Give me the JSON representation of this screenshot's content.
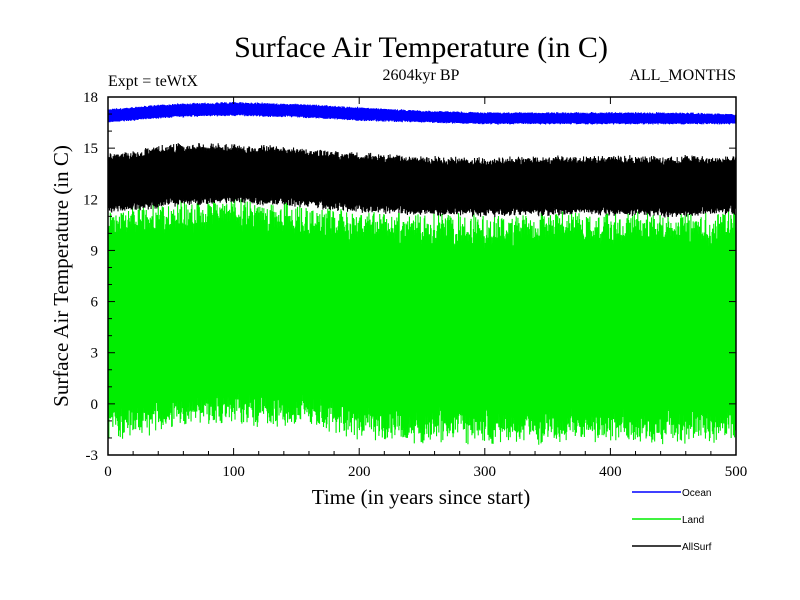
{
  "chart_data": {
    "type": "line",
    "title": "Surface Air Temperature (in C)",
    "subtitle": "2604kyr BP",
    "expt_label": "Expt = teWtX",
    "months_label": "ALL_MONTHS",
    "xlabel": "Time (in years since start)",
    "ylabel": "Surface Air Temperature (in C)",
    "xlim": [
      0,
      500
    ],
    "ylim": [
      -3,
      18
    ],
    "xticks": [
      0,
      100,
      200,
      300,
      400,
      500
    ],
    "yticks": [
      -3,
      0,
      3,
      6,
      9,
      12,
      15,
      18
    ],
    "x_tick_labels": [
      "0",
      "100",
      "200",
      "300",
      "400",
      "500"
    ],
    "y_tick_labels": [
      "-3",
      "0",
      "3",
      "6",
      "9",
      "12",
      "15",
      "18"
    ],
    "grid": false,
    "legend_position": "bottom-right",
    "series": [
      {
        "name": "Land",
        "color": "#00ee00",
        "seasonal_range_keypoints": {
          "x": [
            0,
            50,
            100,
            150,
            200,
            250,
            300,
            350,
            400,
            450,
            500
          ],
          "low": [
            -2.0,
            -1.3,
            -1.0,
            -1.2,
            -1.8,
            -2.1,
            -2.2,
            -2.1,
            -2.0,
            -2.1,
            -2.0
          ],
          "high": [
            11.3,
            11.8,
            11.9,
            11.6,
            11.2,
            11.0,
            10.9,
            11.0,
            11.1,
            11.0,
            11.2
          ]
        }
      },
      {
        "name": "AllSurf",
        "color": "#000000",
        "seasonal_range_keypoints": {
          "x": [
            0,
            50,
            100,
            150,
            200,
            250,
            300,
            350,
            400,
            450,
            500
          ],
          "low": [
            11.2,
            11.6,
            11.8,
            11.6,
            11.3,
            11.1,
            11.0,
            11.1,
            11.1,
            11.0,
            11.2
          ],
          "high": [
            14.6,
            15.2,
            15.2,
            15.0,
            14.7,
            14.5,
            14.4,
            14.5,
            14.5,
            14.5,
            14.5
          ]
        }
      },
      {
        "name": "Ocean",
        "color": "#0000ff",
        "seasonal_range_keypoints": {
          "x": [
            0,
            50,
            100,
            150,
            200,
            250,
            300,
            350,
            400,
            450,
            500
          ],
          "low": [
            16.5,
            16.8,
            16.9,
            16.8,
            16.6,
            16.5,
            16.4,
            16.4,
            16.4,
            16.4,
            16.4
          ],
          "high": [
            17.3,
            17.6,
            17.7,
            17.6,
            17.4,
            17.2,
            17.1,
            17.1,
            17.1,
            17.1,
            17.0
          ]
        }
      }
    ],
    "legend": [
      {
        "label": "Ocean",
        "color": "#0000ff"
      },
      {
        "label": "Land",
        "color": "#00ee00"
      },
      {
        "label": "AllSurf",
        "color": "#000000"
      }
    ]
  }
}
